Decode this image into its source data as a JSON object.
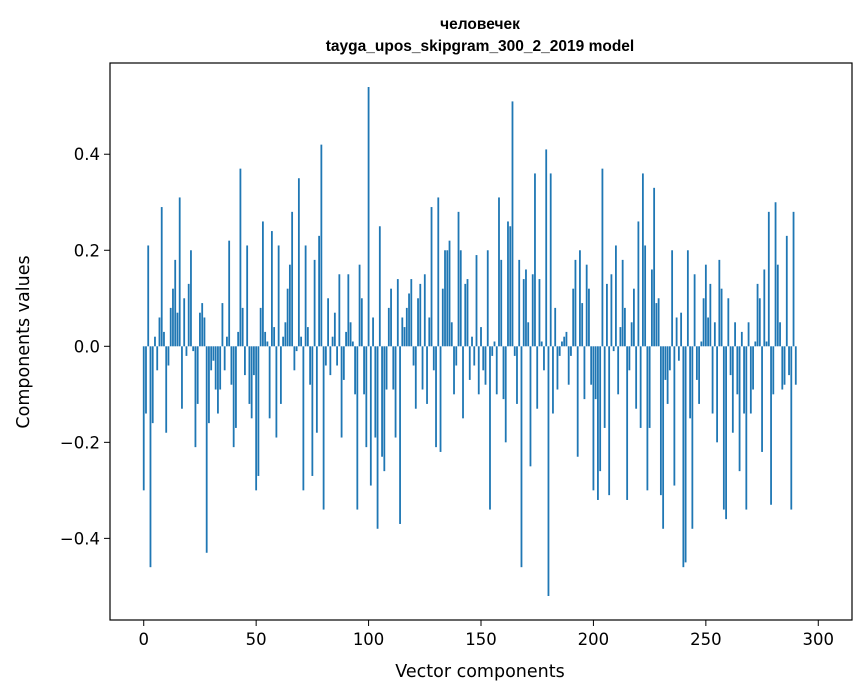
{
  "chart_data": {
    "type": "bar",
    "title": "человечек",
    "subtitle": "tayga_upos_skipgram_300_2_2019 model",
    "xlabel": "Vector components",
    "ylabel": "Components values",
    "xlim": [
      -15,
      315
    ],
    "ylim": [
      -0.57,
      0.59
    ],
    "xticks": [
      0,
      50,
      100,
      150,
      200,
      250,
      300
    ],
    "yticks": [
      -0.4,
      -0.2,
      0.0,
      0.2,
      0.4
    ],
    "ytick_labels": [
      "−0.4",
      "−0.2",
      "0.0",
      "0.2",
      "0.4"
    ],
    "grid": false,
    "bar_color": "#1f77b4",
    "series": [
      {
        "values": [
          -0.3,
          -0.14,
          0.21,
          -0.46,
          -0.16,
          0.02,
          -0.05,
          0.06,
          0.29,
          0.03,
          -0.18,
          -0.04,
          0.08,
          0.12,
          0.18,
          0.07,
          0.31,
          -0.13,
          0.1,
          -0.02,
          0.13,
          0.2,
          -0.01,
          -0.21,
          -0.12,
          0.07,
          0.09,
          0.06,
          -0.43,
          -0.16,
          -0.05,
          -0.03,
          -0.09,
          -0.14,
          -0.09,
          0.09,
          -0.05,
          0.02,
          0.22,
          -0.08,
          -0.21,
          -0.17,
          0.03,
          0.37,
          0.08,
          -0.06,
          0.21,
          -0.12,
          -0.15,
          -0.06,
          -0.3,
          -0.27,
          0.08,
          0.26,
          0.03,
          0.01,
          -0.15,
          0.24,
          0.04,
          -0.19,
          0.21,
          -0.12,
          0.02,
          0.05,
          0.12,
          0.17,
          0.28,
          -0.05,
          -0.01,
          0.35,
          0.02,
          -0.3,
          0.21,
          0.04,
          -0.08,
          -0.27,
          0.18,
          -0.18,
          0.23,
          0.42,
          -0.34,
          -0.04,
          0.1,
          -0.06,
          0.02,
          0.07,
          -0.04,
          0.15,
          -0.19,
          -0.07,
          0.03,
          0.15,
          0.05,
          0.01,
          -0.1,
          -0.34,
          0.17,
          0.1,
          -0.1,
          -0.21,
          0.54,
          -0.29,
          0.06,
          -0.19,
          -0.38,
          0.25,
          -0.23,
          -0.26,
          -0.09,
          0.08,
          0.12,
          -0.09,
          -0.19,
          0.14,
          -0.37,
          0.06,
          0.04,
          0.08,
          0.11,
          0.14,
          -0.04,
          -0.13,
          0.1,
          0.13,
          -0.09,
          0.15,
          -0.12,
          0.06,
          0.29,
          -0.05,
          -0.21,
          0.31,
          -0.22,
          0.12,
          0.2,
          0.2,
          0.22,
          0.05,
          -0.1,
          -0.04,
          0.28,
          0.2,
          -0.15,
          0.13,
          0.14,
          -0.07,
          0.02,
          -0.04,
          0.19,
          -0.1,
          0.04,
          -0.05,
          -0.08,
          0.2,
          -0.34,
          -0.02,
          0.01,
          -0.1,
          0.31,
          0.18,
          -0.11,
          -0.2,
          0.26,
          0.25,
          0.51,
          -0.02,
          -0.12,
          0.18,
          -0.46,
          0.14,
          0.16,
          0.05,
          -0.25,
          0.15,
          0.36,
          -0.13,
          0.14,
          0.01,
          -0.05,
          0.41,
          -0.52,
          0.36,
          -0.14,
          0.08,
          -0.09,
          -0.02,
          0.01,
          0.02,
          0.03,
          -0.08,
          -0.02,
          0.12,
          0.18,
          -0.23,
          0.2,
          0.09,
          -0.11,
          0.17,
          0.12,
          -0.08,
          -0.3,
          -0.11,
          -0.32,
          -0.26,
          0.37,
          -0.17,
          0.13,
          -0.31,
          0.15,
          -0.01,
          0.21,
          -0.1,
          0.04,
          0.18,
          0.08,
          -0.32,
          -0.05,
          0.05,
          0.12,
          -0.13,
          0.26,
          -0.17,
          0.36,
          0.21,
          -0.3,
          -0.17,
          0.16,
          0.33,
          0.09,
          0.1,
          -0.31,
          -0.38,
          -0.07,
          -0.12,
          -0.05,
          0.2,
          -0.29,
          0.06,
          -0.03,
          0.07,
          -0.46,
          -0.45,
          0.2,
          -0.15,
          -0.38,
          0.15,
          -0.07,
          -0.12,
          0.01,
          0.1,
          0.17,
          0.06,
          0.13,
          -0.14,
          0.05,
          -0.2,
          0.18,
          0.12,
          -0.34,
          -0.36,
          0.1,
          -0.06,
          -0.18,
          0.05,
          -0.1,
          -0.26,
          0.03,
          -0.14,
          -0.34,
          0.05,
          -0.14,
          -0.09,
          0.01,
          0.13,
          0.1,
          -0.22,
          0.16,
          0.01,
          0.28,
          -0.33,
          -0.1,
          0.3,
          0.17,
          0.05,
          -0.09,
          -0.08,
          0.23,
          -0.06,
          -0.34,
          0.28,
          -0.08
        ]
      }
    ]
  }
}
